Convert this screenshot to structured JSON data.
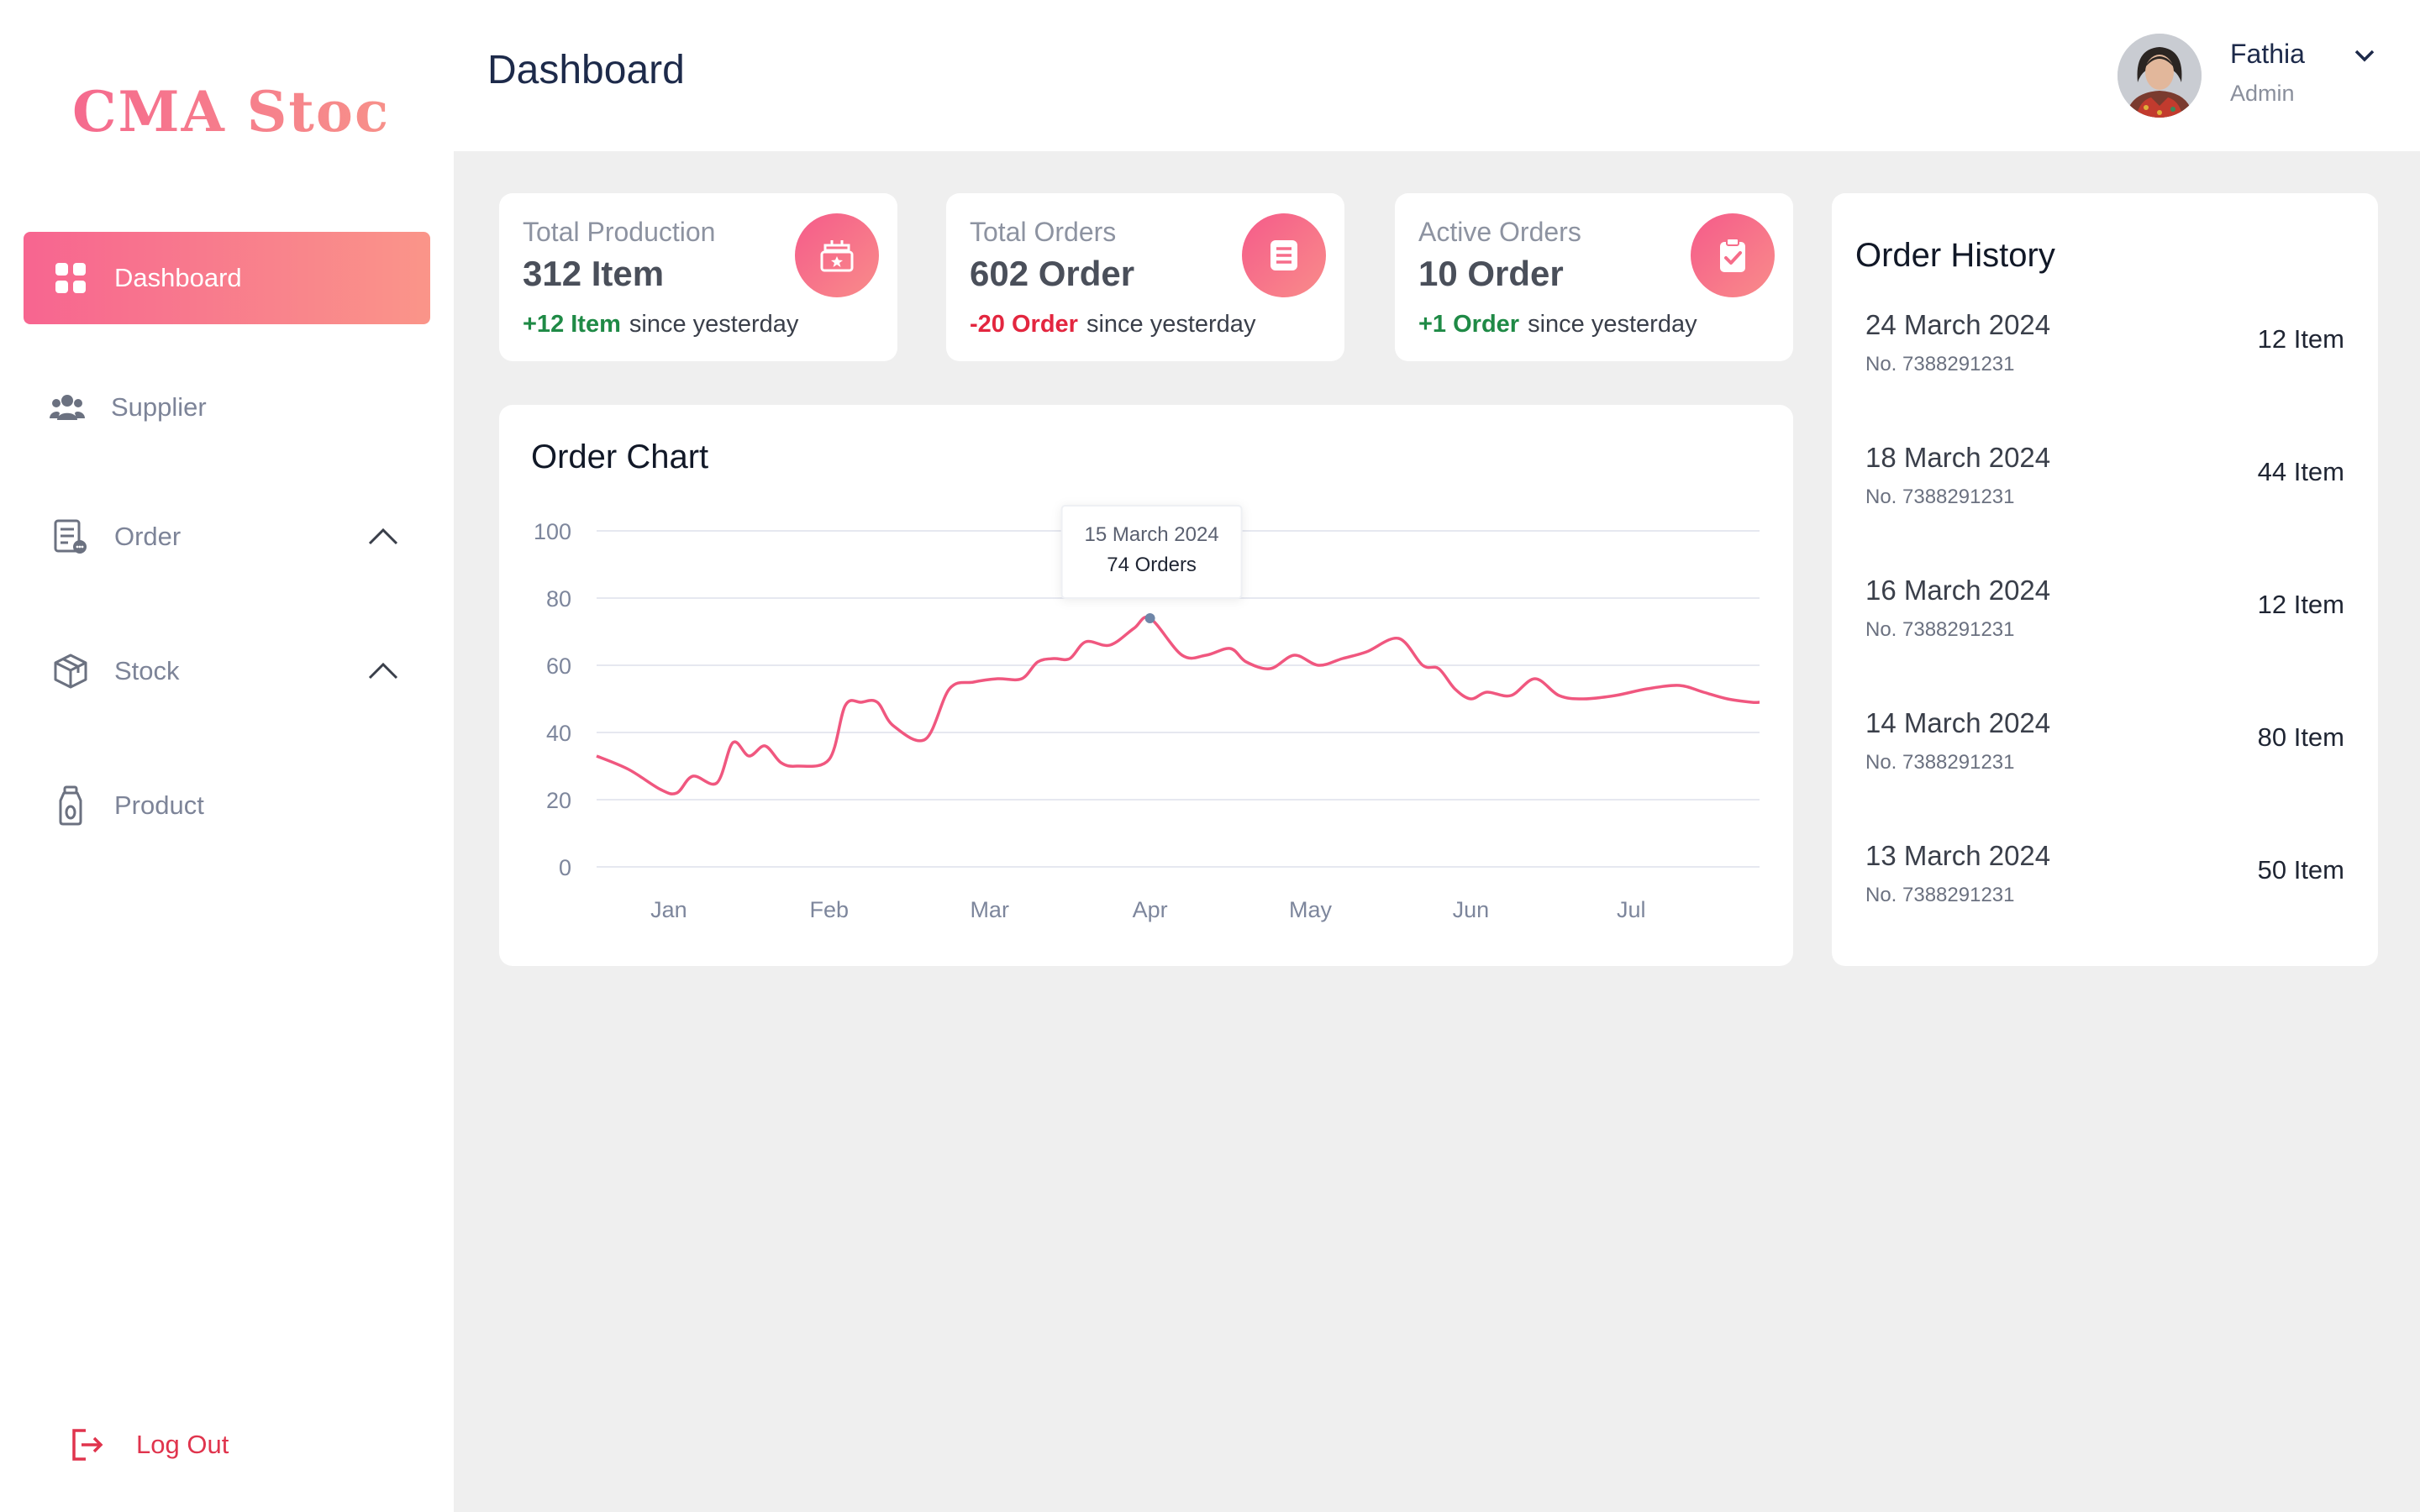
{
  "sidebar": {
    "logo": "CMA Stock",
    "items": [
      {
        "label": "Dashboard",
        "icon": "grid-icon",
        "active": true
      },
      {
        "label": "Supplier",
        "icon": "users-icon"
      },
      {
        "label": "Order",
        "icon": "order-document-icon",
        "expandable": true
      },
      {
        "label": "Stock",
        "icon": "box-icon",
        "expandable": true
      },
      {
        "label": "Product",
        "icon": "bottle-icon"
      }
    ],
    "logout_label": "Log Out"
  },
  "header": {
    "title": "Dashboard",
    "user": {
      "name": "Fathia",
      "role": "Admin"
    }
  },
  "stats": [
    {
      "title": "Total Production",
      "value": "312 Item",
      "delta": "+12 Item",
      "delta_direction": "up",
      "suffix": "since yesterday",
      "icon": "production-box-icon"
    },
    {
      "title": "Total Orders",
      "value": "602 Order",
      "delta": "-20 Order",
      "delta_direction": "down",
      "suffix": "since yesterday",
      "icon": "document-list-icon"
    },
    {
      "title": "Active Orders",
      "value": "10 Order",
      "delta": "+1 Order",
      "delta_direction": "up",
      "suffix": "since yesterday",
      "icon": "clipboard-check-icon"
    }
  ],
  "chart": {
    "title": "Order Chart",
    "tooltip": {
      "date": "15 March 2024",
      "value": "74 Orders"
    }
  },
  "chart_data": {
    "type": "line",
    "title": "Order Chart",
    "x_ticks": [
      "Jan",
      "Feb",
      "Mar",
      "Apr",
      "May",
      "Jun",
      "Jul"
    ],
    "y_ticks": [
      0,
      20,
      40,
      60,
      80,
      100
    ],
    "ylim": [
      0,
      100
    ],
    "xlim": [
      0.55,
      7.8
    ],
    "grid": true,
    "color": "#f0577f",
    "series": [
      {
        "x": [
          0.55,
          0.75,
          0.95,
          1.05,
          1.15,
          1.3,
          1.4,
          1.5,
          1.6,
          1.7,
          1.8,
          2.0,
          2.1,
          2.2,
          2.3,
          2.4,
          2.6,
          2.75,
          2.9,
          3.05,
          3.2,
          3.3,
          3.4,
          3.5,
          3.6,
          3.75,
          3.9,
          4.0,
          4.2,
          4.35,
          4.5,
          4.6,
          4.75,
          4.9,
          5.05,
          5.2,
          5.35,
          5.55,
          5.7,
          5.8,
          5.9,
          6.0,
          6.1,
          6.25,
          6.4,
          6.55,
          6.7,
          6.9,
          7.1,
          7.3,
          7.45,
          7.6,
          7.75,
          7.8
        ],
        "y": [
          33,
          29,
          23,
          22,
          27,
          25,
          37,
          33,
          36,
          31,
          30,
          32,
          48,
          49,
          49,
          42,
          38,
          53,
          55,
          56,
          56,
          61,
          62,
          62,
          67,
          66,
          71,
          74,
          63,
          63,
          65,
          61,
          59,
          63,
          60,
          62,
          64,
          68,
          60,
          59,
          53,
          50,
          52,
          51,
          56,
          51,
          50,
          51,
          53,
          54,
          52,
          50,
          49,
          49
        ]
      }
    ],
    "highlight": {
      "x": 4.0,
      "y": 74,
      "label": "15 March 2024",
      "value": "74 Orders"
    }
  },
  "history": {
    "title": "Order History",
    "rows": [
      {
        "date": "24 March 2024",
        "no": "No. 7388291231",
        "items": "12 Item"
      },
      {
        "date": "18 March 2024",
        "no": "No. 7388291231",
        "items": "44 Item"
      },
      {
        "date": "16 March 2024",
        "no": "No. 7388291231",
        "items": "12 Item"
      },
      {
        "date": "14 March 2024",
        "no": "No. 7388291231",
        "items": "80 Item"
      },
      {
        "date": "13 March 2024",
        "no": "No. 7388291231",
        "items": "50 Item"
      }
    ]
  },
  "colors": {
    "accent": "#f76590",
    "accent_end": "#fa9589",
    "up": "#1f8a46",
    "down": "#e3263f",
    "logout": "#e0344d"
  }
}
